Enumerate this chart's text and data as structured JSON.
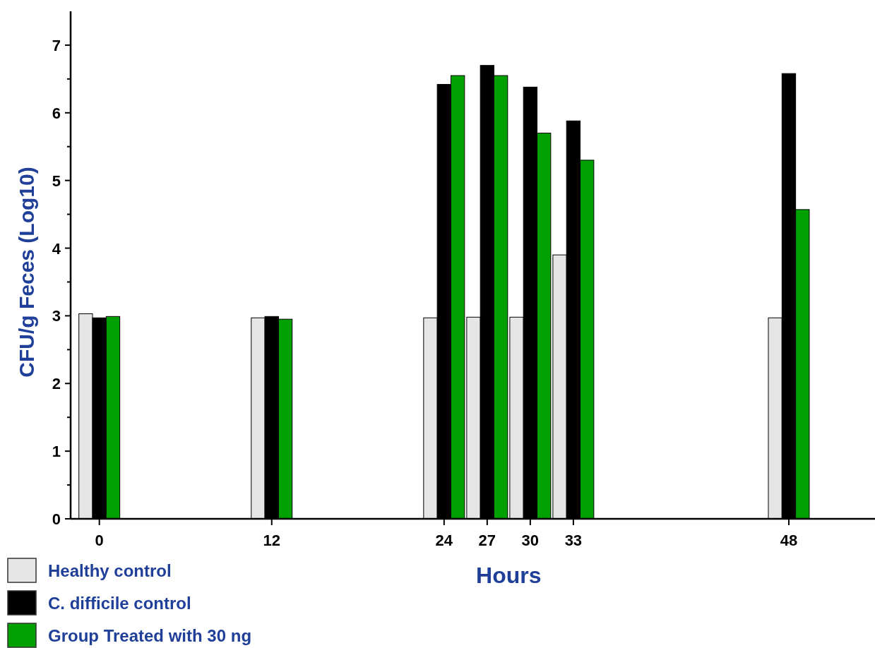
{
  "chart_data": {
    "type": "bar",
    "xlabel": "Hours",
    "ylabel": "CFU/g Feces (Log10)",
    "x": [
      0,
      12,
      24,
      27,
      30,
      33,
      48
    ],
    "series": [
      {
        "name": "Healthy control",
        "color": "#e6e6e6",
        "values": [
          3.03,
          2.97,
          2.97,
          2.98,
          2.98,
          3.9,
          2.97
        ]
      },
      {
        "name": "C. difficile control",
        "color": "#000000",
        "values": [
          2.97,
          2.99,
          6.42,
          6.7,
          6.38,
          5.88,
          6.58
        ]
      },
      {
        "name": "Group Treated with 30 ng",
        "color": "#00a000",
        "values": [
          2.99,
          2.95,
          6.55,
          6.55,
          5.7,
          5.3,
          4.57
        ]
      }
    ],
    "xlim": [
      -2,
      54
    ],
    "xticks": [
      0,
      12,
      24,
      27,
      30,
      33,
      48
    ],
    "ylim": [
      0,
      7.5
    ],
    "yticks": [
      0,
      {
        "value": 0.5,
        "label": null
      },
      1,
      {
        "value": 1.5,
        "label": null
      },
      2,
      {
        "value": 2.5,
        "label": null
      },
      3,
      {
        "value": 3.5,
        "label": null
      },
      4,
      {
        "value": 4.5,
        "label": null
      },
      5,
      {
        "value": 5.5,
        "label": null
      },
      6,
      {
        "value": 6.5,
        "label": null
      },
      7
    ],
    "legend": "bottom left"
  }
}
